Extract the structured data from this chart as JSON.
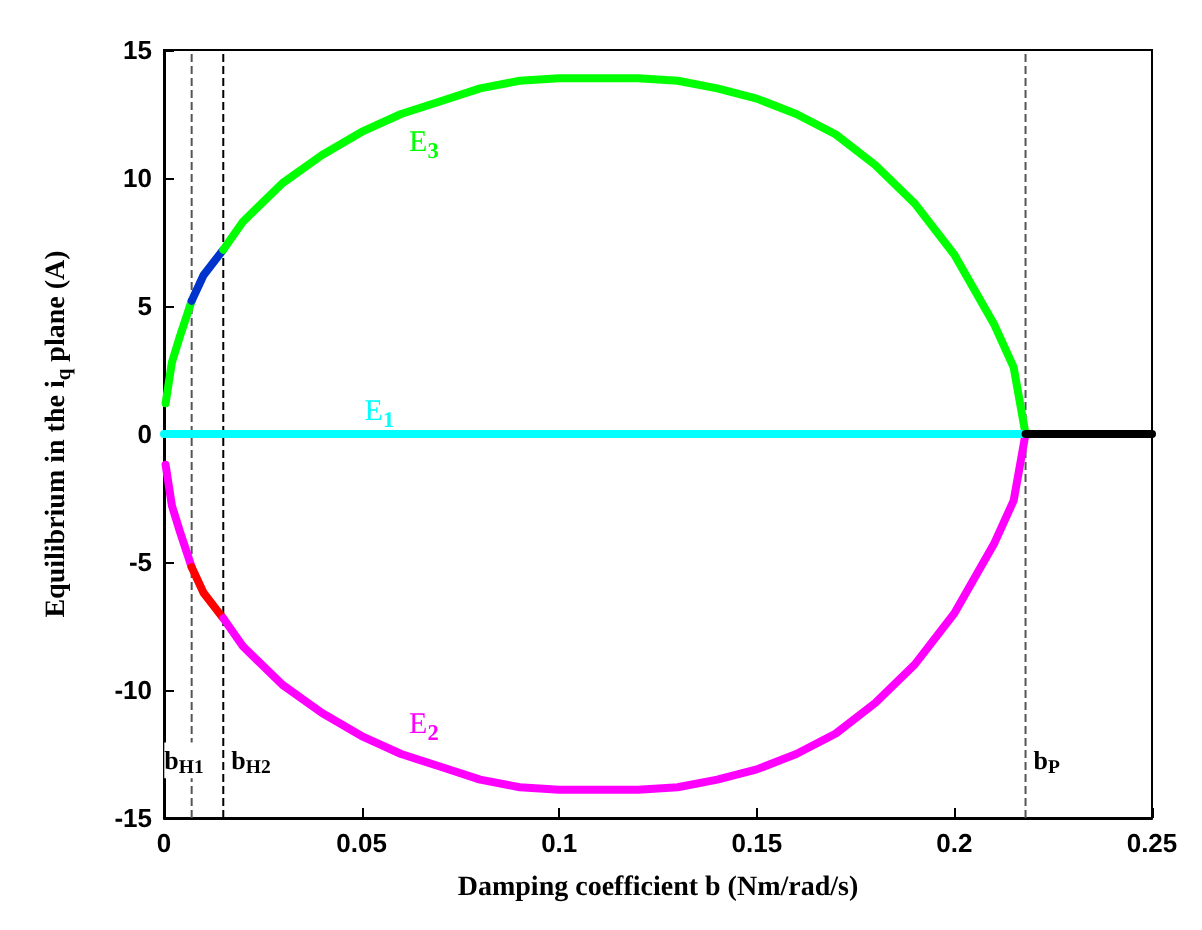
{
  "chart_data": {
    "type": "line",
    "xlabel": "Damping coefficient b (Nm/rad/s)",
    "ylabel": "Equilibrium in the i$_{q}$ plane (A)",
    "xlim": [
      0,
      0.25
    ],
    "xticks": [
      0,
      0.05,
      0.1,
      0.15,
      0.2,
      0.25
    ],
    "ylim": [
      -15,
      15
    ],
    "yticks": [
      -15,
      -10,
      -5,
      0,
      5,
      10,
      15
    ],
    "grid": false,
    "legend": false,
    "marker": "none",
    "line_style": "solid",
    "series": [
      {
        "color": "#00ff00",
        "x": [
          0.0004,
          0.002,
          0.004,
          0.007
        ],
        "values": [
          1.2,
          2.8,
          3.8,
          5.2
        ]
      },
      {
        "color": "#0033cc",
        "x": [
          0.007,
          0.01,
          0.015
        ],
        "values": [
          5.2,
          6.2,
          7.2
        ]
      },
      {
        "name": "E$_{3}$",
        "color": "#00ff00",
        "x": [
          0.015,
          0.02,
          0.03,
          0.04,
          0.05,
          0.06,
          0.07,
          0.08,
          0.09,
          0.1,
          0.11,
          0.12,
          0.13,
          0.14,
          0.15,
          0.16,
          0.17,
          0.18,
          0.19,
          0.2,
          0.21,
          0.215,
          0.218
        ],
        "values": [
          7.2,
          8.3,
          9.8,
          10.9,
          11.8,
          12.5,
          13.0,
          13.5,
          13.8,
          13.9,
          13.9,
          13.9,
          13.8,
          13.5,
          13.1,
          12.5,
          11.7,
          10.5,
          9.0,
          7.0,
          4.3,
          2.6,
          0
        ]
      },
      {
        "color": "#ff00ff",
        "x": [
          0.0004,
          0.002,
          0.004,
          0.007
        ],
        "values": [
          -1.2,
          -2.8,
          -3.8,
          -5.2
        ]
      },
      {
        "color": "#ff0000",
        "x": [
          0.007,
          0.01,
          0.015
        ],
        "values": [
          -5.2,
          -6.2,
          -7.2
        ]
      },
      {
        "name": "E$_{2}$",
        "color": "#ff00ff",
        "x": [
          0.015,
          0.02,
          0.03,
          0.04,
          0.05,
          0.06,
          0.07,
          0.08,
          0.09,
          0.1,
          0.11,
          0.12,
          0.13,
          0.14,
          0.15,
          0.16,
          0.17,
          0.18,
          0.19,
          0.2,
          0.21,
          0.215,
          0.218
        ],
        "values": [
          -7.2,
          -8.3,
          -9.8,
          -10.9,
          -11.8,
          -12.5,
          -13.0,
          -13.5,
          -13.8,
          -13.9,
          -13.9,
          -13.9,
          -13.8,
          -13.5,
          -13.1,
          -12.5,
          -11.7,
          -10.5,
          -9.0,
          -7.0,
          -4.3,
          -2.6,
          0
        ]
      },
      {
        "name": "E$_{1}$",
        "color": "#00ffff",
        "x": [
          0,
          0.218
        ],
        "values": [
          0,
          0
        ]
      },
      {
        "color": "#000000",
        "x": [
          0.218,
          0.25
        ],
        "values": [
          0,
          0
        ]
      }
    ],
    "ref_lines": [
      {
        "axis": "x",
        "value": 0.007,
        "label": "b$_{H1}$",
        "color": "#555555",
        "line_style": "dashed"
      },
      {
        "axis": "x",
        "value": 0.015,
        "label": "b$_{H2}$",
        "color": "#000000",
        "line_style": "dashed"
      },
      {
        "axis": "x",
        "value": 0.218,
        "label": "b$_{P}$",
        "color": "#555555",
        "line_style": "dashed"
      }
    ]
  }
}
